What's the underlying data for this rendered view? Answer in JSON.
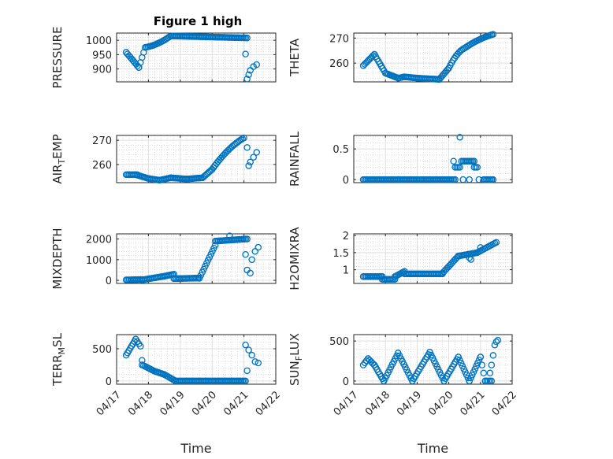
{
  "figure_title": "Figure 1 high",
  "colors": {
    "marker": "#0072BD",
    "axis": "#262626",
    "grid": "#dfdfdf",
    "minor_grid": "#c8c8c8"
  },
  "chart_data": [
    {
      "type": "scatter",
      "ylabel": "PRESSURE",
      "xlabel": "",
      "title": "Figure 1 high",
      "xlim": [
        0,
        5
      ],
      "ylim": [
        855,
        1025
      ],
      "xticks": [
        0,
        1,
        2,
        3,
        4,
        5
      ],
      "xticklabels": [
        "04/17",
        "04/18",
        "04/19",
        "04/20",
        "04/21",
        "04/22"
      ],
      "yticks": [
        900,
        950,
        1000
      ],
      "yticklabels": [
        "900",
        "950",
        "1000"
      ],
      "grid": true,
      "minor_grid": true,
      "segments": [
        {
          "x": [
            0.3,
            0.7
          ],
          "y": [
            958,
            905
          ],
          "curve": 0
        },
        {
          "x": [
            0.7,
            0.9
          ],
          "y": [
            905,
            975
          ],
          "curve": 0
        },
        {
          "x": [
            0.9,
            1.7
          ],
          "y": [
            975,
            1015
          ],
          "curve": -0.3
        },
        {
          "x": [
            1.7,
            4.1
          ],
          "y": [
            1015,
            1008
          ],
          "curve": 0
        }
      ],
      "points": [
        {
          "x": 4.05,
          "y": 952
        },
        {
          "x": 4.1,
          "y": 865
        },
        {
          "x": 4.15,
          "y": 880
        },
        {
          "x": 4.2,
          "y": 895
        },
        {
          "x": 4.3,
          "y": 908
        },
        {
          "x": 4.4,
          "y": 915
        }
      ]
    },
    {
      "type": "scatter",
      "ylabel": "THETA",
      "xlabel": "",
      "xlim": [
        0,
        5
      ],
      "ylim": [
        252.5,
        272
      ],
      "xticks": [
        0,
        1,
        2,
        3,
        4,
        5
      ],
      "xticklabels": [
        "04/17",
        "04/18",
        "04/19",
        "04/20",
        "04/21",
        "04/22"
      ],
      "yticks": [
        260,
        270
      ],
      "yticklabels": [
        "260",
        "270"
      ],
      "grid": true,
      "minor_grid": true,
      "segments": [
        {
          "x": [
            0.3,
            0.65
          ],
          "y": [
            259,
            263.5
          ],
          "curve": 0
        },
        {
          "x": [
            0.65,
            1.0
          ],
          "y": [
            263.5,
            256
          ],
          "curve": 0
        },
        {
          "x": [
            1.0,
            1.4
          ],
          "y": [
            256,
            254
          ],
          "curve": 0
        },
        {
          "x": [
            1.4,
            1.6
          ],
          "y": [
            254,
            254.5
          ],
          "curve": 0
        },
        {
          "x": [
            1.6,
            2.0
          ],
          "y": [
            254.5,
            254
          ],
          "curve": 0
        },
        {
          "x": [
            2.0,
            2.7
          ],
          "y": [
            254,
            253.5
          ],
          "curve": 0
        },
        {
          "x": [
            2.7,
            3.0
          ],
          "y": [
            253.5,
            258
          ],
          "curve": 0
        },
        {
          "x": [
            3.0,
            3.5
          ],
          "y": [
            258,
            266
          ],
          "curve": 0.3
        },
        {
          "x": [
            3.5,
            4.4
          ],
          "y": [
            266,
            271.5
          ],
          "curve": 0.2
        }
      ],
      "points": []
    },
    {
      "type": "scatter",
      "ylabel": "AIR",
      "ylabel_sub": "T",
      "ylabel_rest": "EMP",
      "xlabel": "",
      "xlim": [
        0,
        5
      ],
      "ylim": [
        252.5,
        272
      ],
      "xticks": [
        0,
        1,
        2,
        3,
        4,
        5
      ],
      "xticklabels": [
        "04/17",
        "04/18",
        "04/19",
        "04/20",
        "04/21",
        "04/22"
      ],
      "yticks": [
        260,
        270
      ],
      "yticklabels": [
        "260",
        "270"
      ],
      "grid": true,
      "minor_grid": true,
      "segments": [
        {
          "x": [
            0.3,
            0.65
          ],
          "y": [
            255.8,
            255.8
          ],
          "curve": 0
        },
        {
          "x": [
            0.65,
            1.0
          ],
          "y": [
            255.6,
            254.2
          ],
          "curve": 0
        },
        {
          "x": [
            1.0,
            1.35
          ],
          "y": [
            254.2,
            253.5
          ],
          "curve": 0
        },
        {
          "x": [
            1.35,
            1.7
          ],
          "y": [
            253.5,
            254.5
          ],
          "curve": 0
        },
        {
          "x": [
            1.7,
            2.2
          ],
          "y": [
            254.5,
            254.0
          ],
          "curve": 0
        },
        {
          "x": [
            2.2,
            2.7
          ],
          "y": [
            254.0,
            254.5
          ],
          "curve": 0
        },
        {
          "x": [
            2.7,
            3.0
          ],
          "y": [
            254.5,
            258
          ],
          "curve": 0
        },
        {
          "x": [
            3.0,
            4.0
          ],
          "y": [
            258,
            271
          ],
          "curve": 0.2
        }
      ],
      "points": [
        {
          "x": 4.1,
          "y": 267
        },
        {
          "x": 4.15,
          "y": 259.5
        },
        {
          "x": 4.2,
          "y": 261
        },
        {
          "x": 4.3,
          "y": 263
        },
        {
          "x": 4.4,
          "y": 265
        }
      ]
    },
    {
      "type": "scatter",
      "ylabel": "RAINFALL",
      "xlabel": "",
      "xlim": [
        0,
        5
      ],
      "ylim": [
        -0.05,
        0.72
      ],
      "xticks": [
        0,
        1,
        2,
        3,
        4,
        5
      ],
      "xticklabels": [
        "04/17",
        "04/18",
        "04/19",
        "04/20",
        "04/21",
        "04/22"
      ],
      "yticks": [
        0,
        0.5
      ],
      "yticklabels": [
        "0",
        "0.5"
      ],
      "grid": true,
      "minor_grid": true,
      "segments": [
        {
          "x": [
            0.3,
            3.2
          ],
          "y": [
            0,
            0
          ],
          "curve": 0
        },
        {
          "x": [
            3.2,
            3.35
          ],
          "y": [
            0.2,
            0.2
          ],
          "curve": 0
        },
        {
          "x": [
            3.45,
            3.8
          ],
          "y": [
            0.3,
            0.3
          ],
          "curve": 0
        },
        {
          "x": [
            3.8,
            3.9
          ],
          "y": [
            0.2,
            0.2
          ],
          "curve": 0
        },
        {
          "x": [
            4.1,
            4.4
          ],
          "y": [
            0,
            0
          ],
          "curve": 0
        }
      ],
      "points": [
        {
          "x": 3.15,
          "y": 0.3
        },
        {
          "x": 3.35,
          "y": 0.69
        },
        {
          "x": 3.4,
          "y": 0.3
        },
        {
          "x": 3.45,
          "y": 0.0
        },
        {
          "x": 3.65,
          "y": 0.0
        },
        {
          "x": 3.95,
          "y": 0.0
        }
      ]
    },
    {
      "type": "scatter",
      "ylabel": "MIXDEPTH",
      "xlabel": "",
      "xlim": [
        0,
        5
      ],
      "ylim": [
        -150,
        2250
      ],
      "xticks": [
        0,
        1,
        2,
        3,
        4,
        5
      ],
      "xticklabels": [
        "04/17",
        "04/18",
        "04/19",
        "04/20",
        "04/21",
        "04/22"
      ],
      "yticks": [
        0,
        1000,
        2000
      ],
      "yticklabels": [
        "0",
        "1000",
        "2000"
      ],
      "grid": true,
      "minor_grid": true,
      "segments": [
        {
          "x": [
            0.3,
            0.8
          ],
          "y": [
            20,
            40
          ],
          "curve": 0
        },
        {
          "x": [
            0.8,
            1.5
          ],
          "y": [
            20,
            200
          ],
          "curve": 0
        },
        {
          "x": [
            1.5,
            1.8
          ],
          "y": [
            200,
            300
          ],
          "curve": 0
        },
        {
          "x": [
            1.8,
            2.6
          ],
          "y": [
            80,
            110
          ],
          "curve": 0
        },
        {
          "x": [
            2.6,
            3.1
          ],
          "y": [
            100,
            1700
          ],
          "curve": 0
        },
        {
          "x": [
            3.1,
            4.1
          ],
          "y": [
            1900,
            2000
          ],
          "curve": 0
        }
      ],
      "points": [
        {
          "x": 3.55,
          "y": 2150
        },
        {
          "x": 4.05,
          "y": 1250
        },
        {
          "x": 4.1,
          "y": 500
        },
        {
          "x": 4.2,
          "y": 350
        },
        {
          "x": 4.25,
          "y": 1000
        },
        {
          "x": 4.35,
          "y": 1400
        },
        {
          "x": 4.45,
          "y": 1600
        }
      ]
    },
    {
      "type": "scatter",
      "ylabel": "H2OMIXRA",
      "xlabel": "",
      "xlim": [
        0,
        5
      ],
      "ylim": [
        0.6,
        2.05
      ],
      "xticks": [
        0,
        1,
        2,
        3,
        4,
        5
      ],
      "xticklabels": [
        "04/17",
        "04/18",
        "04/19",
        "04/20",
        "04/21",
        "04/22"
      ],
      "yticks": [
        1,
        1.5,
        2
      ],
      "yticklabels": [
        "1",
        "1.5",
        "2"
      ],
      "grid": true,
      "minor_grid": true,
      "segments": [
        {
          "x": [
            0.3,
            0.9
          ],
          "y": [
            0.8,
            0.8
          ],
          "curve": 0
        },
        {
          "x": [
            0.9,
            1.3
          ],
          "y": [
            0.72,
            0.72
          ],
          "curve": 0
        },
        {
          "x": [
            1.3,
            1.6
          ],
          "y": [
            0.8,
            0.95
          ],
          "curve": 0
        },
        {
          "x": [
            1.6,
            2.8
          ],
          "y": [
            0.88,
            0.88
          ],
          "curve": 0
        },
        {
          "x": [
            2.8,
            3.3
          ],
          "y": [
            0.9,
            1.4
          ],
          "curve": 0
        },
        {
          "x": [
            3.3,
            3.9
          ],
          "y": [
            1.4,
            1.5
          ],
          "curve": 0
        },
        {
          "x": [
            3.9,
            4.5
          ],
          "y": [
            1.5,
            1.8
          ],
          "curve": 0
        }
      ],
      "points": [
        {
          "x": 3.65,
          "y": 1.35
        },
        {
          "x": 3.7,
          "y": 1.3
        },
        {
          "x": 4.0,
          "y": 1.65
        }
      ]
    },
    {
      "type": "scatter",
      "ylabel": "TERR",
      "ylabel_sub": "M",
      "ylabel_rest": "SL",
      "xlabel": "Time",
      "xlim": [
        0,
        5
      ],
      "ylim": [
        -50,
        720
      ],
      "xticks": [
        0,
        1,
        2,
        3,
        4,
        5
      ],
      "xticklabels": [
        "04/17",
        "04/18",
        "04/19",
        "04/20",
        "04/21",
        "04/22"
      ],
      "yticks": [
        0,
        500
      ],
      "yticklabels": [
        "0",
        "500"
      ],
      "grid": true,
      "minor_grid": true,
      "segments": [
        {
          "x": [
            0.3,
            0.6
          ],
          "y": [
            400,
            650
          ],
          "curve": 0
        },
        {
          "x": [
            0.6,
            0.75
          ],
          "y": [
            650,
            540
          ],
          "curve": 0
        },
        {
          "x": [
            0.8,
            1.2
          ],
          "y": [
            250,
            150
          ],
          "curve": 0
        },
        {
          "x": [
            1.2,
            1.5
          ],
          "y": [
            150,
            100
          ],
          "curve": 0
        },
        {
          "x": [
            1.5,
            1.85
          ],
          "y": [
            100,
            0
          ],
          "curve": 0
        },
        {
          "x": [
            1.85,
            4.05
          ],
          "y": [
            0,
            0
          ],
          "curve": 0
        }
      ],
      "points": [
        {
          "x": 0.8,
          "y": 320
        },
        {
          "x": 4.05,
          "y": 560
        },
        {
          "x": 4.1,
          "y": 160
        },
        {
          "x": 4.15,
          "y": 480
        },
        {
          "x": 4.25,
          "y": 400
        },
        {
          "x": 4.35,
          "y": 300
        },
        {
          "x": 4.45,
          "y": 280
        }
      ]
    },
    {
      "type": "scatter",
      "ylabel": "SUN",
      "ylabel_sub": "F",
      "ylabel_rest": "LUX",
      "xlabel": "Time",
      "xlim": [
        0,
        5
      ],
      "ylim": [
        -40,
        580
      ],
      "xticks": [
        0,
        1,
        2,
        3,
        4,
        5
      ],
      "xticklabels": [
        "04/17",
        "04/18",
        "04/19",
        "04/20",
        "04/21",
        "04/22"
      ],
      "yticks": [
        0,
        500
      ],
      "yticklabels": [
        "0",
        "500"
      ],
      "grid": true,
      "minor_grid": true,
      "segments": [
        {
          "x": [
            0.3,
            0.45
          ],
          "y": [
            200,
            280
          ],
          "curve": 0
        },
        {
          "x": [
            0.45,
            0.65
          ],
          "y": [
            280,
            200
          ],
          "curve": 0
        },
        {
          "x": [
            0.65,
            0.95
          ],
          "y": [
            200,
            0
          ],
          "curve": 0
        },
        {
          "x": [
            0.95,
            1.4
          ],
          "y": [
            0,
            350
          ],
          "curve": 0
        },
        {
          "x": [
            1.4,
            1.85
          ],
          "y": [
            350,
            0
          ],
          "curve": 0
        },
        {
          "x": [
            1.85,
            2.4
          ],
          "y": [
            0,
            360
          ],
          "curve": 0
        },
        {
          "x": [
            2.4,
            2.85
          ],
          "y": [
            360,
            0
          ],
          "curve": 0
        },
        {
          "x": [
            2.85,
            3.3
          ],
          "y": [
            0,
            300
          ],
          "curve": 0
        },
        {
          "x": [
            3.3,
            3.65
          ],
          "y": [
            300,
            0
          ],
          "curve": 0
        },
        {
          "x": [
            3.65,
            4.0
          ],
          "y": [
            0,
            300
          ],
          "curve": 0
        },
        {
          "x": [
            4.0,
            4.15
          ],
          "y": [
            300,
            0
          ],
          "curve": 0
        },
        {
          "x": [
            4.15,
            4.35
          ],
          "y": [
            0,
            0
          ],
          "curve": 0
        }
      ],
      "points": [
        {
          "x": 4.3,
          "y": 100
        },
        {
          "x": 4.35,
          "y": 200
        },
        {
          "x": 4.4,
          "y": 320
        },
        {
          "x": 4.45,
          "y": 450
        },
        {
          "x": 4.5,
          "y": 490
        },
        {
          "x": 4.55,
          "y": 510
        }
      ]
    }
  ]
}
